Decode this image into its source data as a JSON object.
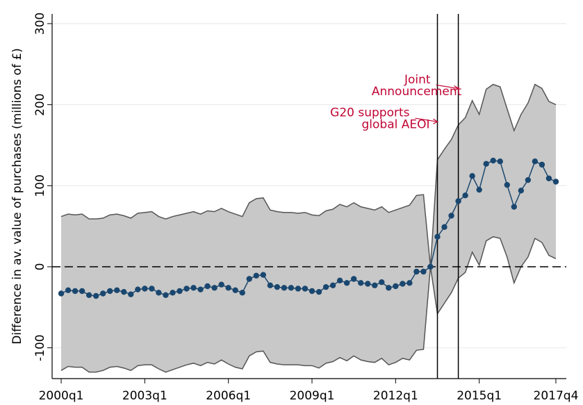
{
  "chart_data": {
    "type": "band-line",
    "y_label": "Difference in av. value of purchases (millions of £)",
    "x": [
      160,
      161,
      162,
      163,
      164,
      165,
      166,
      167,
      168,
      169,
      170,
      171,
      172,
      173,
      174,
      175,
      176,
      177,
      178,
      179,
      180,
      181,
      182,
      183,
      184,
      185,
      186,
      187,
      188,
      189,
      190,
      191,
      192,
      193,
      194,
      195,
      196,
      197,
      198,
      199,
      200,
      201,
      202,
      203,
      204,
      205,
      206,
      207,
      208,
      209,
      210,
      211,
      212,
      213,
      214,
      215,
      216,
      217,
      218,
      219,
      220,
      221,
      222,
      223,
      224,
      225,
      226,
      227,
      228,
      229,
      230,
      231
    ],
    "values": [
      -33,
      -29,
      -30,
      -30,
      -35,
      -36,
      -33,
      -30,
      -29,
      -31,
      -34,
      -28,
      -27,
      -27,
      -32,
      -35,
      -32,
      -30,
      -27,
      -26,
      -28,
      -24,
      -26,
      -22,
      -26,
      -29,
      -32,
      -15,
      -11,
      -10,
      -23,
      -25,
      -26,
      -26,
      -27,
      -27,
      -30,
      -31,
      -25,
      -23,
      -17,
      -20,
      -15,
      -20,
      -21,
      -23,
      -19,
      -26,
      -24,
      -21,
      -20,
      -6,
      -6,
      0,
      37,
      49,
      63,
      81,
      88,
      112,
      95,
      127,
      131,
      130,
      101,
      74,
      94,
      107,
      130,
      126,
      109,
      105
    ],
    "upper": [
      62,
      65,
      64,
      65,
      59,
      59,
      60,
      64,
      65,
      63,
      60,
      66,
      67,
      68,
      62,
      59,
      62,
      64,
      66,
      68,
      65,
      69,
      68,
      72,
      68,
      65,
      62,
      79,
      84,
      85,
      70,
      68,
      67,
      67,
      66,
      67,
      64,
      63,
      69,
      71,
      77,
      74,
      79,
      74,
      72,
      70,
      74,
      67,
      70,
      73,
      76,
      88,
      89,
      0,
      132,
      145,
      157,
      175,
      184,
      205,
      188,
      219,
      225,
      222,
      195,
      168,
      188,
      202,
      225,
      220,
      204,
      200
    ],
    "lower": [
      -128,
      -123,
      -124,
      -124,
      -130,
      -130,
      -128,
      -124,
      -123,
      -125,
      -128,
      -122,
      -121,
      -121,
      -126,
      -130,
      -127,
      -124,
      -121,
      -119,
      -122,
      -118,
      -120,
      -115,
      -120,
      -124,
      -126,
      -110,
      -105,
      -104,
      -118,
      -120,
      -121,
      -121,
      -121,
      -122,
      -122,
      -125,
      -119,
      -117,
      -112,
      -116,
      -110,
      -115,
      -117,
      -118,
      -113,
      -121,
      -118,
      -113,
      -115,
      -103,
      -102,
      0,
      -58,
      -45,
      -32,
      -14,
      -7,
      18,
      2,
      32,
      37,
      35,
      12,
      -20,
      0,
      12,
      35,
      30,
      14,
      10
    ],
    "color": "#1a476f",
    "band_color": "#c8c8c8",
    "band_edge": "#555555",
    "xlim": [
      158.7,
      232.5
    ],
    "ylim": [
      -138,
      312
    ],
    "xticks": [
      {
        "value": 160,
        "label": "2000q1"
      },
      {
        "value": 172,
        "label": "2003q1"
      },
      {
        "value": 184,
        "label": "2006q1"
      },
      {
        "value": 196,
        "label": "2009q1"
      },
      {
        "value": 208,
        "label": "2012q1"
      },
      {
        "value": 220,
        "label": "2015q1"
      },
      {
        "value": 231,
        "label": "2017q4"
      }
    ],
    "yticks": [
      -100,
      0,
      100,
      200,
      300
    ],
    "grid": true,
    "reference_line": 0,
    "event_lines": [
      214,
      217
    ],
    "annotations": [
      {
        "lines": [
          "Joint",
          "Announcement"
        ],
        "x": 217,
        "y": 220
      },
      {
        "lines": [
          "G20 supports",
          "global AEOI"
        ],
        "x": 214,
        "y": 179
      }
    ],
    "annotation_color": "#c10534"
  }
}
